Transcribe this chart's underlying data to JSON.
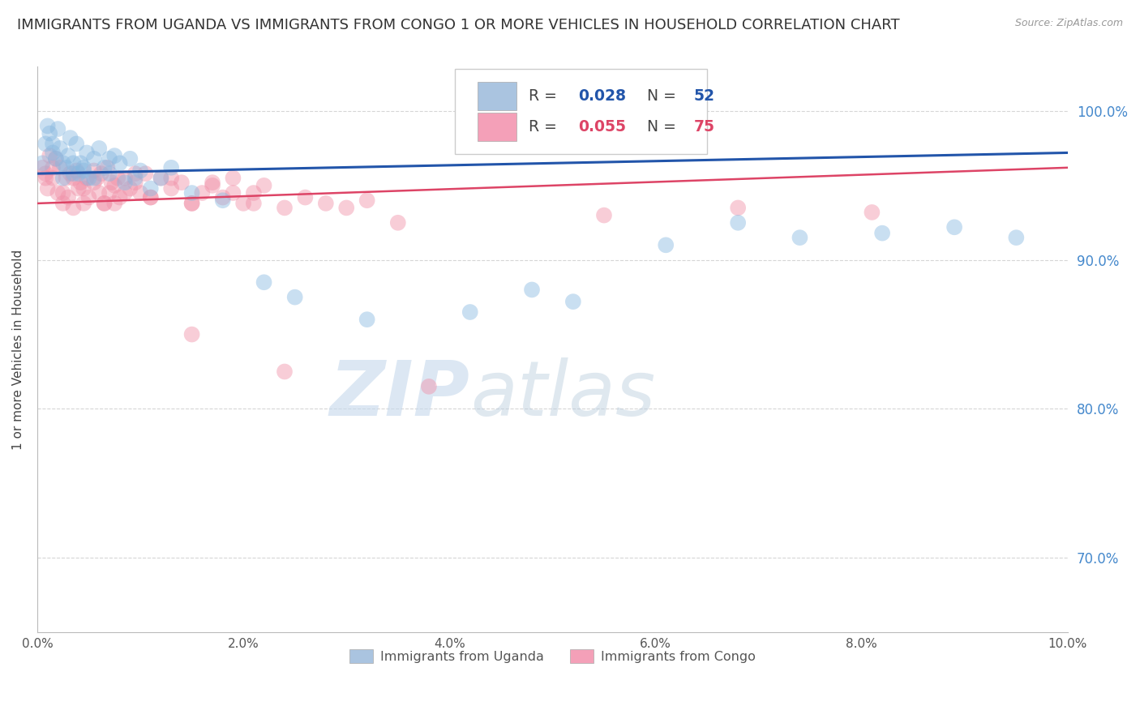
{
  "title": "IMMIGRANTS FROM UGANDA VS IMMIGRANTS FROM CONGO 1 OR MORE VEHICLES IN HOUSEHOLD CORRELATION CHART",
  "source": "Source: ZipAtlas.com",
  "ylabel": "1 or more Vehicles in Household",
  "legend1_r": "0.028",
  "legend1_n": "52",
  "legend2_r": "0.055",
  "legend2_n": "75",
  "legend1_color": "#aac4e0",
  "legend2_color": "#f4a0b8",
  "blue_color": "#88b8e0",
  "pink_color": "#f090a8",
  "blue_line_color": "#2255aa",
  "pink_line_color": "#dd4466",
  "watermark_zip": "ZIP",
  "watermark_atlas": "atlas",
  "xlim": [
    0.0,
    10.0
  ],
  "ylim": [
    65.0,
    103.0
  ],
  "yticks": [
    70.0,
    80.0,
    90.0,
    100.0
  ],
  "ytick_labels": [
    "70.0%",
    "80.0%",
    "90.0%",
    "100.0%"
  ],
  "xticks": [
    0.0,
    2.0,
    4.0,
    6.0,
    8.0,
    10.0
  ],
  "xtick_labels": [
    "0.0%",
    "2.0%",
    "4.0%",
    "6.0%",
    "8.0%",
    "10.0%"
  ],
  "grid_color": "#cccccc",
  "background_color": "#ffffff",
  "title_fontsize": 13,
  "axis_fontsize": 11,
  "uganda_x": [
    0.05,
    0.08,
    0.1,
    0.12,
    0.15,
    0.18,
    0.2,
    0.22,
    0.25,
    0.28,
    0.3,
    0.32,
    0.35,
    0.38,
    0.4,
    0.42,
    0.45,
    0.48,
    0.5,
    0.55,
    0.6,
    0.65,
    0.7,
    0.75,
    0.8,
    0.85,
    0.9,
    0.95,
    1.0,
    1.1,
    1.2,
    1.3,
    1.5,
    1.8,
    2.2,
    2.5,
    3.2,
    4.2,
    4.8,
    5.2,
    6.1,
    6.8,
    7.4,
    8.2,
    8.9,
    9.5,
    0.15,
    0.25,
    0.35,
    0.45,
    0.55,
    0.7
  ],
  "uganda_y": [
    96.5,
    97.8,
    99.0,
    98.5,
    97.2,
    96.8,
    98.8,
    97.5,
    95.5,
    96.2,
    97.0,
    98.2,
    96.5,
    97.8,
    95.8,
    96.5,
    96.0,
    97.2,
    95.5,
    96.8,
    97.5,
    96.2,
    95.8,
    97.0,
    96.5,
    95.2,
    96.8,
    95.5,
    96.0,
    94.8,
    95.5,
    96.2,
    94.5,
    94.0,
    88.5,
    87.5,
    86.0,
    86.5,
    88.0,
    87.2,
    91.0,
    92.5,
    91.5,
    91.8,
    92.2,
    91.5,
    97.8,
    96.5,
    95.8,
    96.2,
    95.5,
    96.8
  ],
  "congo_x": [
    0.05,
    0.08,
    0.1,
    0.12,
    0.15,
    0.18,
    0.2,
    0.22,
    0.25,
    0.28,
    0.3,
    0.32,
    0.35,
    0.38,
    0.4,
    0.42,
    0.45,
    0.48,
    0.5,
    0.55,
    0.58,
    0.6,
    0.62,
    0.65,
    0.68,
    0.7,
    0.72,
    0.75,
    0.78,
    0.8,
    0.85,
    0.9,
    0.95,
    1.0,
    1.05,
    1.1,
    1.2,
    1.3,
    1.4,
    1.5,
    1.6,
    1.7,
    1.8,
    1.9,
    2.0,
    2.1,
    2.2,
    2.4,
    2.6,
    2.8,
    3.0,
    3.2,
    3.5,
    0.08,
    0.15,
    0.25,
    0.35,
    0.45,
    0.55,
    0.65,
    0.75,
    0.85,
    0.95,
    1.1,
    1.3,
    1.5,
    1.7,
    1.9,
    2.1,
    2.4,
    3.8,
    5.5,
    6.8,
    8.1,
    1.5
  ],
  "congo_y": [
    96.2,
    95.5,
    94.8,
    97.0,
    95.5,
    96.8,
    94.5,
    96.2,
    93.8,
    95.5,
    94.2,
    95.8,
    93.5,
    96.0,
    94.8,
    95.2,
    93.8,
    95.5,
    94.2,
    96.0,
    95.5,
    94.5,
    95.8,
    93.8,
    96.2,
    94.5,
    95.2,
    93.8,
    95.5,
    94.2,
    95.5,
    94.8,
    95.2,
    94.5,
    95.8,
    94.2,
    95.5,
    94.8,
    95.2,
    93.8,
    94.5,
    95.0,
    94.2,
    95.5,
    93.8,
    94.5,
    95.0,
    93.5,
    94.2,
    93.8,
    93.5,
    94.0,
    92.5,
    95.8,
    96.2,
    94.5,
    95.5,
    94.8,
    95.2,
    93.8,
    95.0,
    94.5,
    95.8,
    94.2,
    95.5,
    93.8,
    95.2,
    94.5,
    93.8,
    82.5,
    81.5,
    93.0,
    93.5,
    93.2,
    85.0
  ],
  "blue_line_x0": 0.0,
  "blue_line_y0": 95.8,
  "blue_line_x1": 10.0,
  "blue_line_y1": 97.2,
  "pink_line_x0": 0.0,
  "pink_line_y0": 93.8,
  "pink_line_x1": 10.0,
  "pink_line_y1": 96.2
}
